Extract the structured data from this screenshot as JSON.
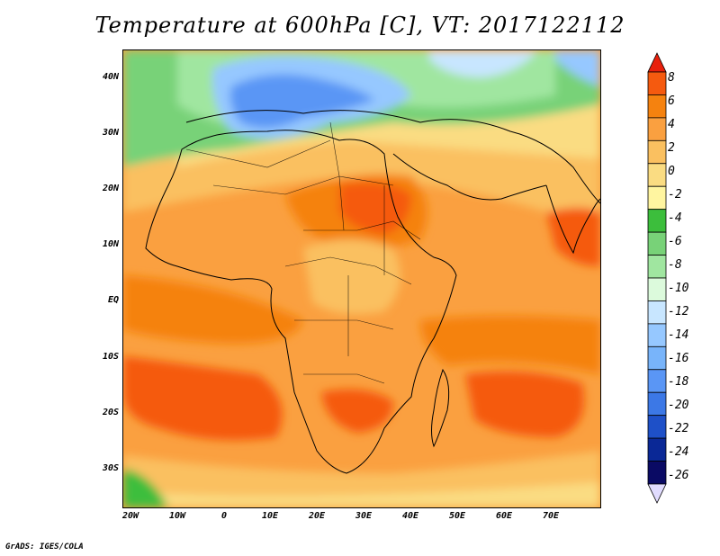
{
  "title": "Temperature at 600hPa [C], VT: 2017122112",
  "footer": "GrADS: IGES/COLA",
  "lat_labels": [
    "40N",
    "30N",
    "20N",
    "10N",
    "EQ",
    "10S",
    "20S",
    "30S"
  ],
  "lon_labels": [
    "20W",
    "10W",
    "0",
    "10E",
    "20E",
    "30E",
    "40E",
    "50E",
    "60E",
    "70E"
  ],
  "colorbar": {
    "labels": [
      "8",
      "6",
      "4",
      "2",
      "0",
      "-2",
      "-4",
      "-6",
      "-8",
      "-10",
      "-12",
      "-14",
      "-16",
      "-18",
      "-20",
      "-22",
      "-24",
      "-26"
    ],
    "colors": [
      "#e8200c",
      "#f55a0f",
      "#f5820f",
      "#faa040",
      "#fac060",
      "#fadc82",
      "#fff5a0",
      "#3cbe3c",
      "#78d278",
      "#a0e6a0",
      "#dcfadc",
      "#c8e6ff",
      "#96c8ff",
      "#78b4fa",
      "#5a96f5",
      "#3c78e6",
      "#1e50c8",
      "#0a2896",
      "#0a0a64",
      "#e1dcff"
    ]
  }
}
